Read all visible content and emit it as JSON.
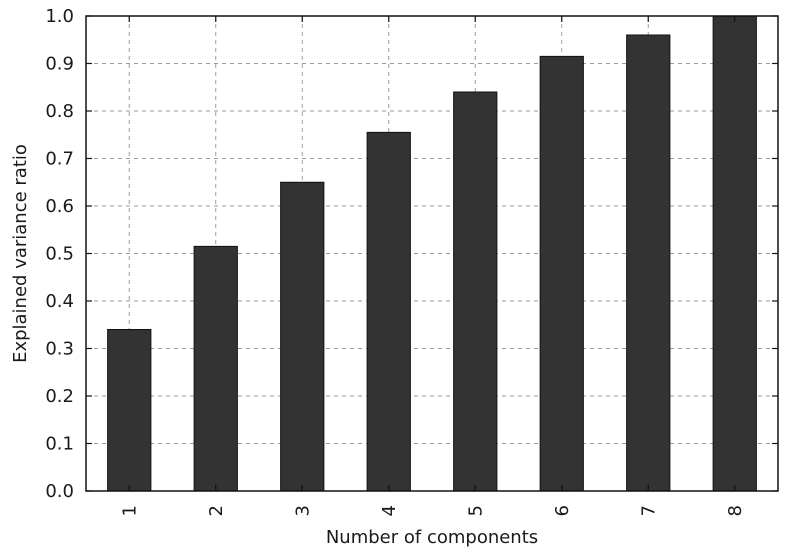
{
  "chart_data": {
    "type": "bar",
    "title": "",
    "xlabel": "Number of components",
    "ylabel": "Explained variance ratio",
    "categories": [
      "1",
      "2",
      "3",
      "4",
      "5",
      "6",
      "7",
      "8"
    ],
    "values": [
      0.34,
      0.515,
      0.65,
      0.755,
      0.84,
      0.915,
      0.96,
      1.0
    ],
    "ylim": [
      0.0,
      1.0
    ],
    "yticks": [
      "0.0",
      "0.1",
      "0.2",
      "0.3",
      "0.4",
      "0.5",
      "0.6",
      "0.7",
      "0.8",
      "0.9",
      "1.0"
    ],
    "x_tick_rotation": "vertical",
    "grid": true,
    "legend": false,
    "bar_color": "#333333"
  }
}
